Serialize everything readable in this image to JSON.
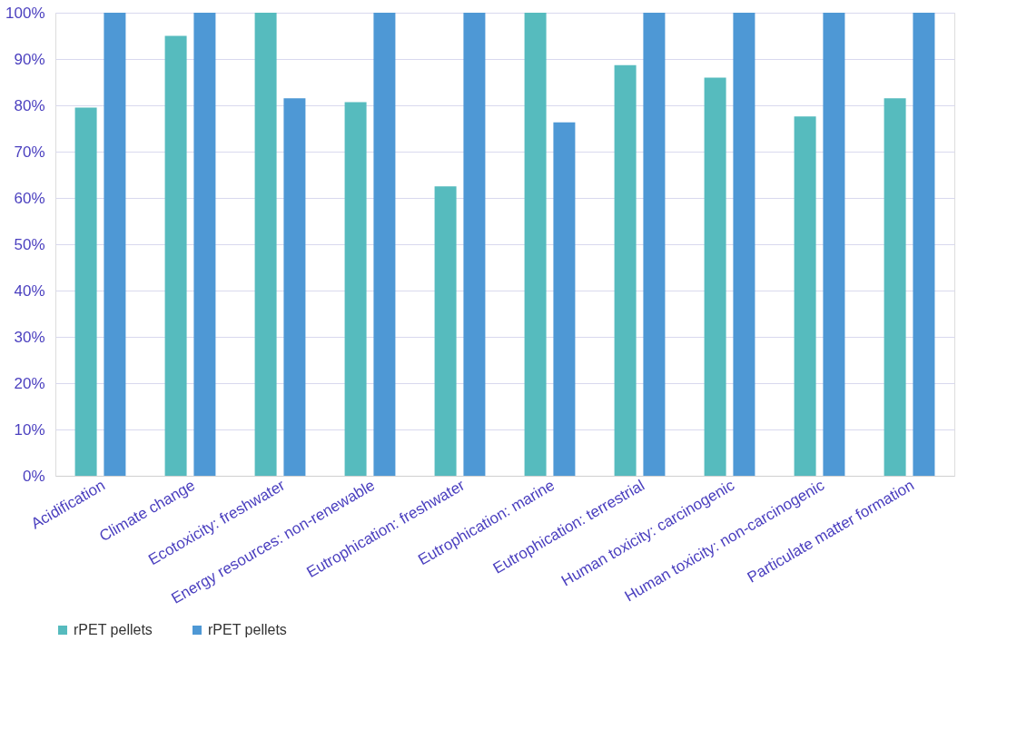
{
  "chart_data": {
    "type": "bar",
    "categories": [
      "Acidification",
      "Climate change",
      "Ecotoxicity: freshwater",
      "Energy resources: non-renewable",
      "Eutrophication: freshwater",
      "Eutrophication: marine",
      "Eutrophication: terrestrial",
      "Human toxicity: carcinogenic",
      "Human toxicity: non-carcinogenic",
      "Particulate matter formation"
    ],
    "series": [
      {
        "name": "rPET pellets",
        "color": "#56bbbe",
        "values": [
          79.5,
          95,
          100,
          80.7,
          62.5,
          100,
          88.7,
          86,
          77.6,
          81.5
        ]
      },
      {
        "name": "rPET pellets",
        "color": "#4e98d5",
        "values": [
          100,
          100,
          81.5,
          100,
          100,
          76.3,
          100,
          100,
          100,
          100
        ]
      }
    ],
    "ylim": [
      0,
      100
    ],
    "yticks": [
      {
        "value": 0,
        "label": "0%"
      },
      {
        "value": 10,
        "label": "10%"
      },
      {
        "value": 20,
        "label": "20%"
      },
      {
        "value": 30,
        "label": "30%"
      },
      {
        "value": 40,
        "label": "40%"
      },
      {
        "value": 50,
        "label": "50%"
      },
      {
        "value": 60,
        "label": "60%"
      },
      {
        "value": 70,
        "label": "70%"
      },
      {
        "value": 80,
        "label": "80%"
      },
      {
        "value": 90,
        "label": "90%"
      },
      {
        "value": 100,
        "label": "100%"
      }
    ],
    "grid": "y",
    "legend": "bottom"
  }
}
